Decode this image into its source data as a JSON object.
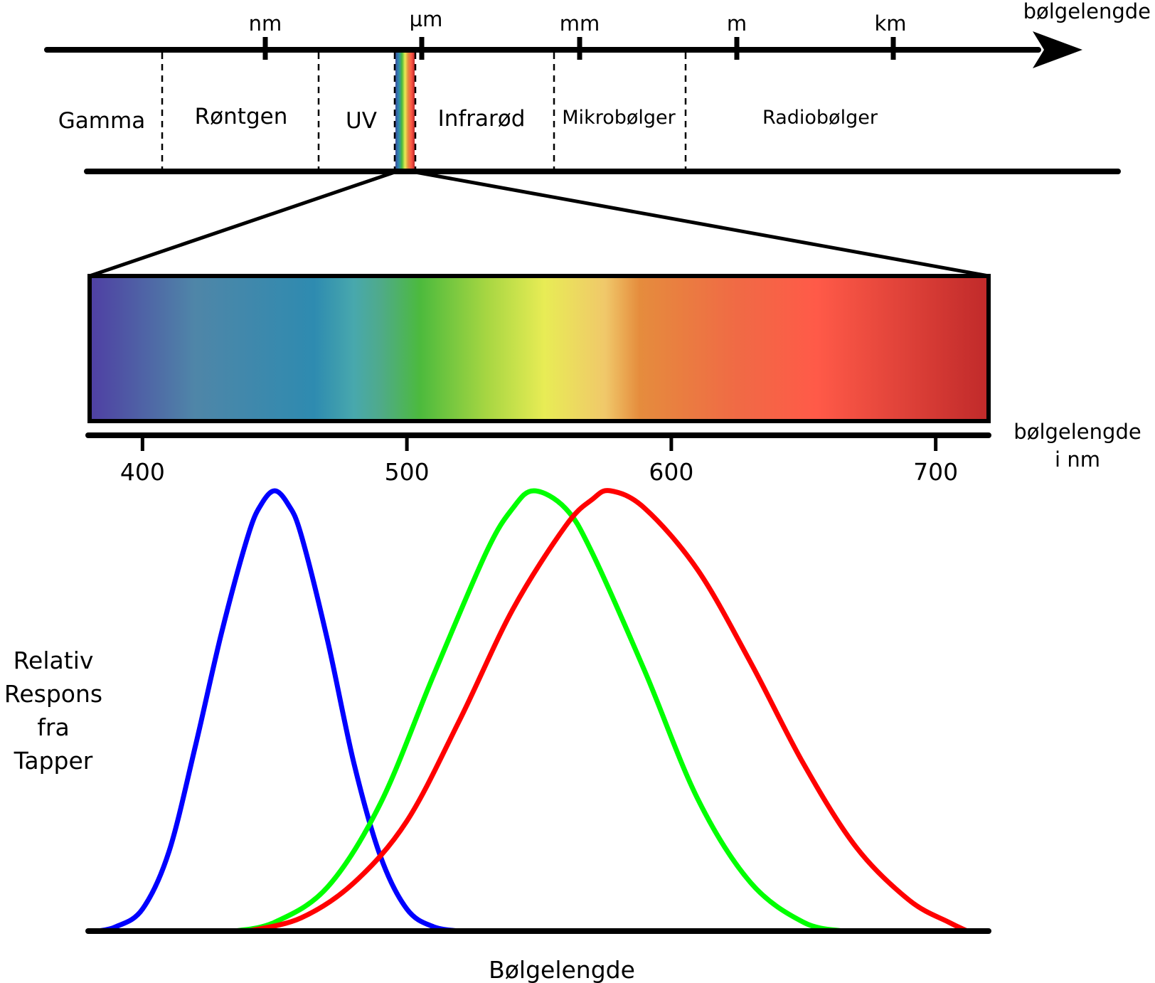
{
  "top_axis": {
    "axis_label": "bølgelengde",
    "scale_ticks": [
      {
        "label": "nm"
      },
      {
        "label": "µm"
      },
      {
        "label": "mm"
      },
      {
        "label": "m"
      },
      {
        "label": "km"
      }
    ],
    "regions": [
      {
        "label": "Gamma"
      },
      {
        "label": "Røntgen"
      },
      {
        "label": "UV"
      },
      {
        "label": "Infrarød"
      },
      {
        "label": "Mikrobølger"
      },
      {
        "label": "Radiobølger"
      }
    ]
  },
  "visible_spectrum": {
    "axis_label_line1": "bølgelengde",
    "axis_label_line2": "i nm",
    "range_nm": [
      380,
      720
    ],
    "ticks": [
      {
        "value": 400,
        "label": "400"
      },
      {
        "value": 500,
        "label": "500"
      },
      {
        "value": 600,
        "label": "600"
      },
      {
        "value": 700,
        "label": "700"
      }
    ],
    "color_stops": [
      {
        "nm": 380,
        "color": "#4f3fa3"
      },
      {
        "nm": 420,
        "color": "#4f86a8"
      },
      {
        "nm": 465,
        "color": "#2e8bb0"
      },
      {
        "nm": 480,
        "color": "#48a8ad"
      },
      {
        "nm": 490,
        "color": "#4faa8a"
      },
      {
        "nm": 505,
        "color": "#4cba3d"
      },
      {
        "nm": 530,
        "color": "#a6d642"
      },
      {
        "nm": 552,
        "color": "#e8ec55"
      },
      {
        "nm": 575,
        "color": "#f0c86a"
      },
      {
        "nm": 588,
        "color": "#e58c3d"
      },
      {
        "nm": 625,
        "color": "#f06a45"
      },
      {
        "nm": 655,
        "color": "#ff5a48"
      },
      {
        "nm": 720,
        "color": "#c02a2a"
      }
    ]
  },
  "chart_data": {
    "type": "line",
    "xlabel": "Bølgelengde",
    "ylabel_lines": [
      "Relativ",
      "Respons",
      "fra",
      "Tapper"
    ],
    "xlim": [
      380,
      720
    ],
    "ylim": [
      0,
      1
    ],
    "series": [
      {
        "color": "#0000ff",
        "points": [
          [
            383,
            0
          ],
          [
            390,
            0.01
          ],
          [
            400,
            0.05
          ],
          [
            410,
            0.18
          ],
          [
            420,
            0.42
          ],
          [
            430,
            0.68
          ],
          [
            440,
            0.9
          ],
          [
            445,
            0.97
          ],
          [
            450,
            1.0
          ],
          [
            455,
            0.97
          ],
          [
            460,
            0.9
          ],
          [
            470,
            0.66
          ],
          [
            480,
            0.38
          ],
          [
            490,
            0.17
          ],
          [
            500,
            0.05
          ],
          [
            510,
            0.01
          ],
          [
            520,
            0
          ]
        ]
      },
      {
        "color": "#00ff00",
        "points": [
          [
            435,
            0
          ],
          [
            450,
            0.02
          ],
          [
            470,
            0.1
          ],
          [
            490,
            0.29
          ],
          [
            510,
            0.58
          ],
          [
            530,
            0.86
          ],
          [
            540,
            0.96
          ],
          [
            548,
            1.0
          ],
          [
            560,
            0.96
          ],
          [
            570,
            0.86
          ],
          [
            590,
            0.59
          ],
          [
            610,
            0.3
          ],
          [
            630,
            0.11
          ],
          [
            650,
            0.02
          ],
          [
            665,
            0
          ]
        ]
      },
      {
        "color": "#ff0000",
        "points": [
          [
            440,
            0
          ],
          [
            460,
            0.03
          ],
          [
            480,
            0.11
          ],
          [
            500,
            0.25
          ],
          [
            520,
            0.48
          ],
          [
            540,
            0.73
          ],
          [
            560,
            0.92
          ],
          [
            570,
            0.98
          ],
          [
            577,
            1.0
          ],
          [
            590,
            0.96
          ],
          [
            610,
            0.82
          ],
          [
            630,
            0.61
          ],
          [
            650,
            0.38
          ],
          [
            670,
            0.19
          ],
          [
            690,
            0.07
          ],
          [
            705,
            0.02
          ],
          [
            712,
            0
          ]
        ]
      }
    ]
  }
}
